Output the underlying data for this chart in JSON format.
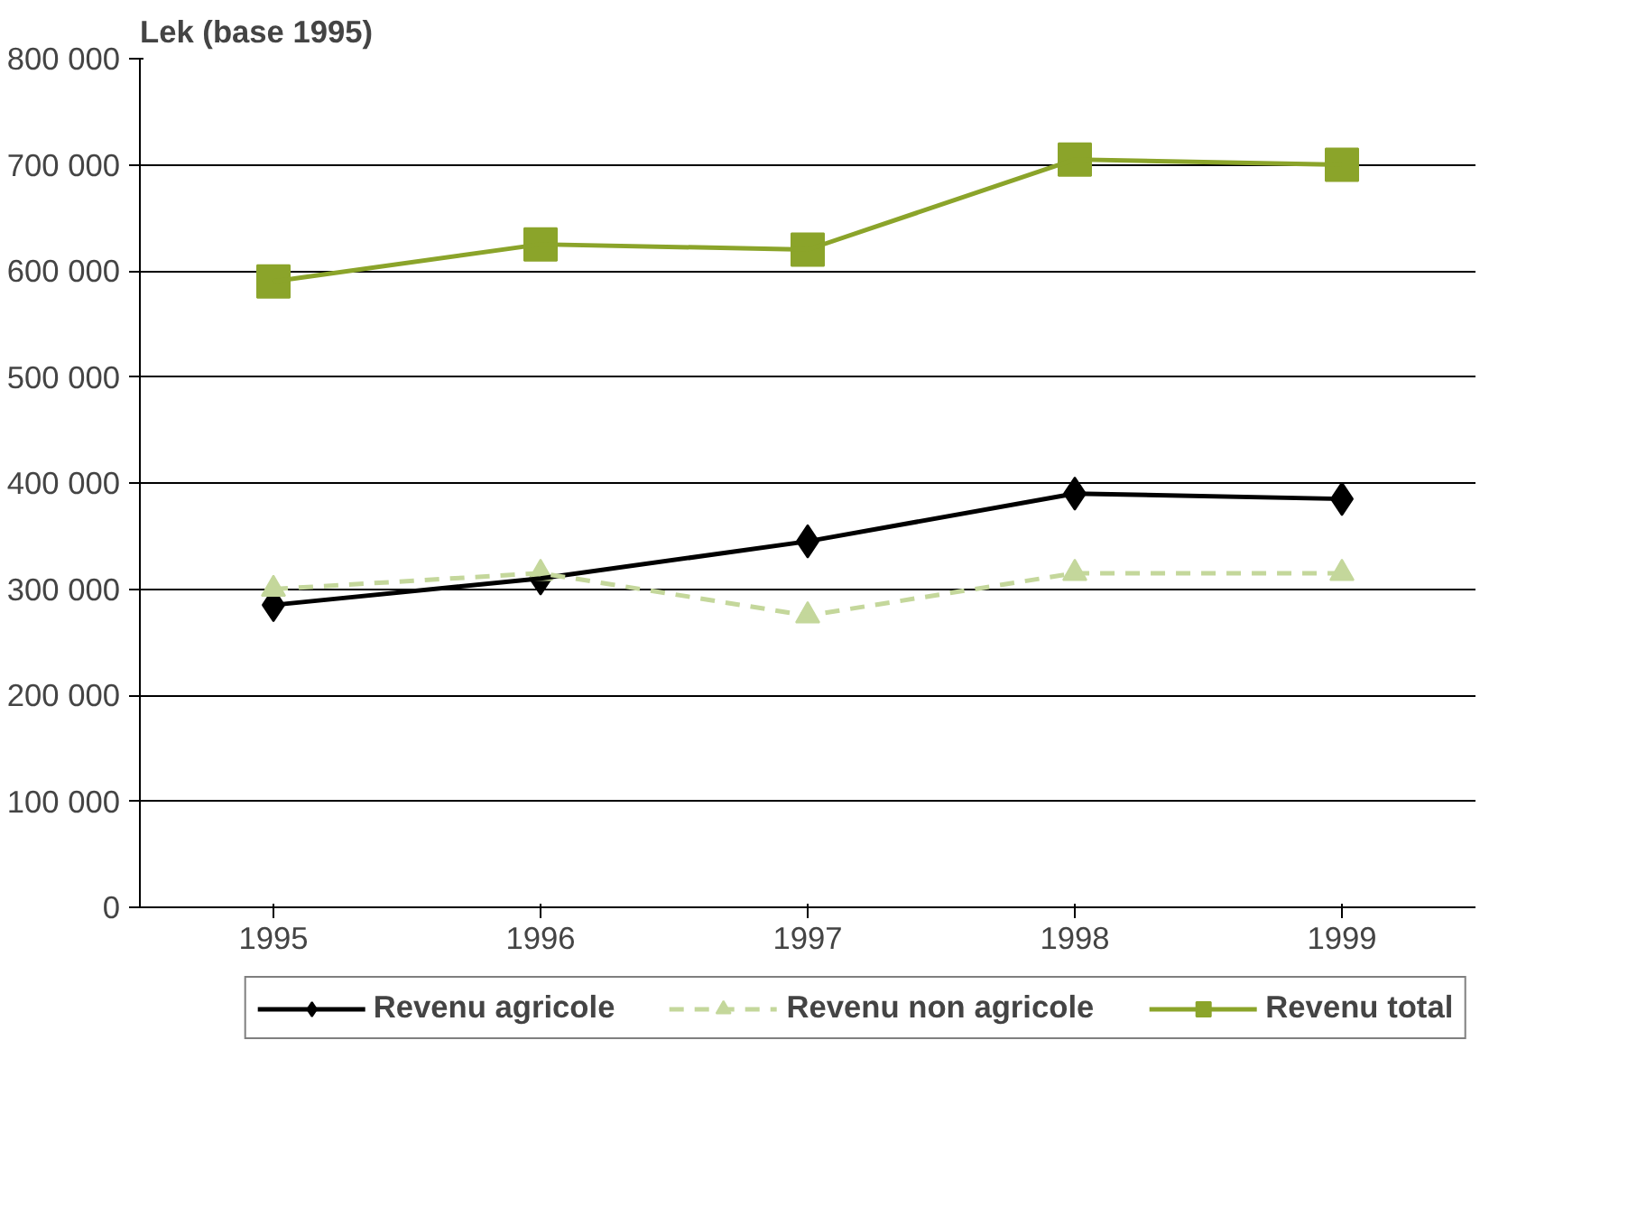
{
  "chart_data": {
    "type": "line",
    "ylabel": "Lek (base 1995)",
    "categories": [
      "1995",
      "1996",
      "1997",
      "1998",
      "1999"
    ],
    "series": [
      {
        "name": "Revenu agricole",
        "color": "#000000",
        "marker": "diamond",
        "line_style": "solid",
        "values": [
          285000,
          310000,
          345000,
          390000,
          385000
        ]
      },
      {
        "name": "Revenu non agricole",
        "color": "#c4d79b",
        "marker": "triangle",
        "line_style": "dashed",
        "values": [
          300000,
          315000,
          275000,
          315000,
          315000
        ]
      },
      {
        "name": "Revenu total",
        "color": "#8ba42a",
        "marker": "square",
        "line_style": "solid",
        "values": [
          590000,
          625000,
          620000,
          705000,
          700000
        ]
      }
    ],
    "ylim": [
      0,
      800000
    ],
    "yticks": [
      0,
      {
        "value": 100000,
        "label": "100 000"
      },
      {
        "value": 200000,
        "label": "200 000"
      },
      {
        "value": 300000,
        "label": "300 000"
      },
      {
        "value": 400000,
        "label": "400 000"
      },
      {
        "value": 500000,
        "label": "500 000"
      },
      {
        "value": 600000,
        "label": "600 000"
      },
      {
        "value": 700000,
        "label": "700 000"
      },
      {
        "value": 800000,
        "label": "800 000"
      }
    ],
    "grid": "y",
    "legend": "bottom"
  }
}
